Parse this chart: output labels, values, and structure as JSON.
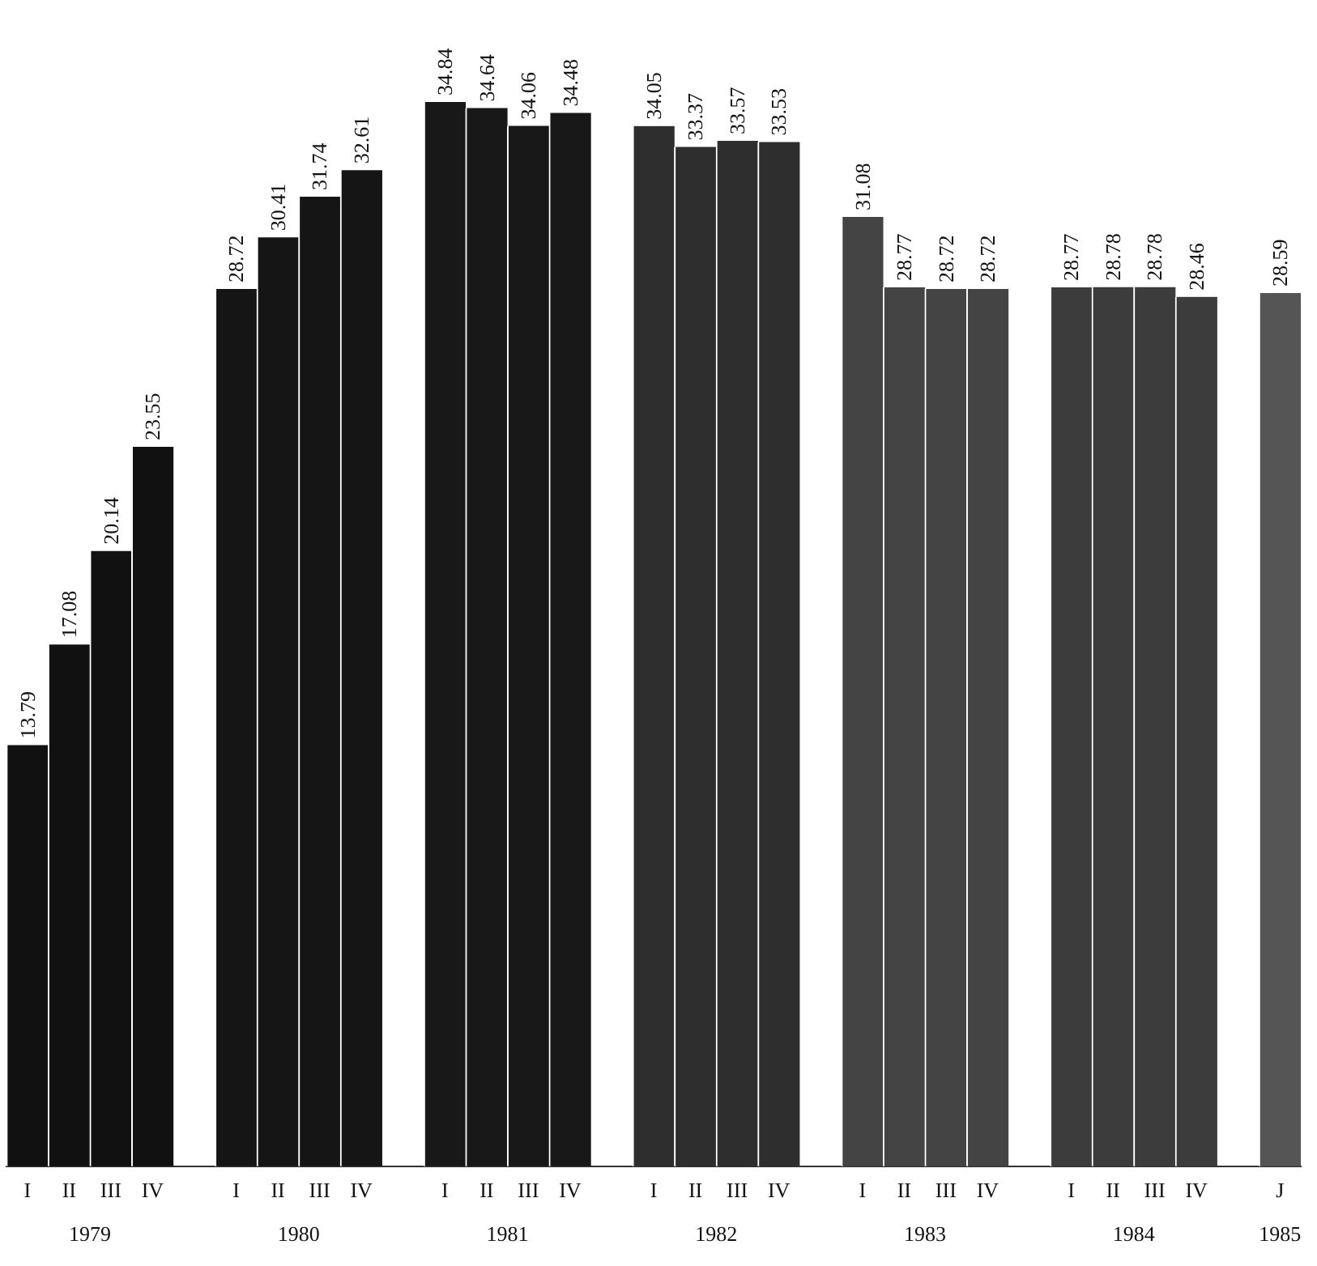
{
  "chart_data": {
    "type": "bar",
    "categories": [
      "I",
      "II",
      "III",
      "IV",
      null,
      "I",
      "II",
      "III",
      "IV",
      null,
      "I",
      "II",
      "III",
      "IV",
      null,
      "I",
      "II",
      "III",
      "IV",
      null,
      "I",
      "II",
      "III",
      "IV",
      null,
      "I",
      "II",
      "III",
      "IV",
      null,
      "J"
    ],
    "values": [
      13.79,
      17.08,
      20.14,
      23.55,
      null,
      28.72,
      30.41,
      31.74,
      32.61,
      null,
      34.84,
      34.64,
      34.06,
      34.48,
      null,
      34.05,
      33.37,
      33.57,
      33.53,
      null,
      31.08,
      28.77,
      28.72,
      28.72,
      null,
      28.77,
      28.78,
      28.78,
      28.46,
      null,
      28.59
    ],
    "colors": [
      "#111111",
      "#111111",
      "#111111",
      "#111111",
      "#ffffff",
      "#151515",
      "#151515",
      "#151515",
      "#151515",
      "#ffffff",
      "#181818",
      "#181818",
      "#181818",
      "#181818",
      "#ffffff",
      "#2e2e2e",
      "#2e2e2e",
      "#2e2e2e",
      "#2e2e2e",
      "#ffffff",
      "#444444",
      "#444444",
      "#444444",
      "#444444",
      "#ffffff",
      "#3c3c3c",
      "#3c3c3c",
      "#3c3c3c",
      "#3c3c3c",
      "#ffffff",
      "#555555"
    ],
    "annotations": [
      "1979",
      "1980",
      "1981",
      "1982",
      "1983",
      "1984",
      "1985"
    ],
    "data_labels": true,
    "grid": false,
    "legend": false
  }
}
